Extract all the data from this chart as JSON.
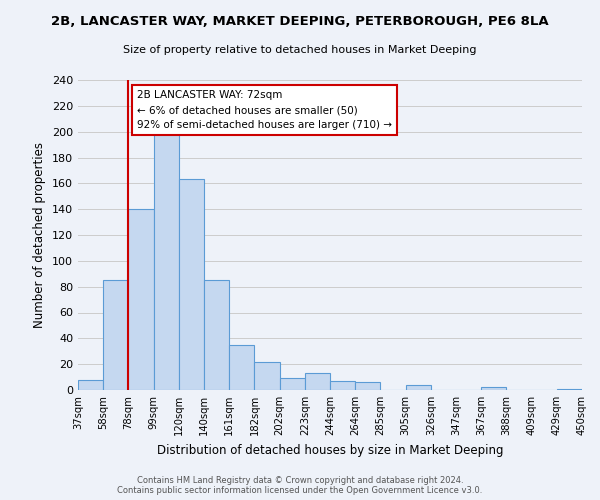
{
  "title": "2B, LANCASTER WAY, MARKET DEEPING, PETERBOROUGH, PE6 8LA",
  "subtitle": "Size of property relative to detached houses in Market Deeping",
  "xlabel": "Distribution of detached houses by size in Market Deeping",
  "ylabel": "Number of detached properties",
  "bar_values": [
    8,
    85,
    140,
    200,
    163,
    85,
    35,
    22,
    9,
    13,
    7,
    6,
    0,
    4,
    0,
    0,
    2,
    0,
    0,
    1
  ],
  "bin_labels": [
    "37sqm",
    "58sqm",
    "78sqm",
    "99sqm",
    "120sqm",
    "140sqm",
    "161sqm",
    "182sqm",
    "202sqm",
    "223sqm",
    "244sqm",
    "264sqm",
    "285sqm",
    "305sqm",
    "326sqm",
    "347sqm",
    "367sqm",
    "388sqm",
    "409sqm",
    "429sqm",
    "450sqm"
  ],
  "bar_color": "#c5d8f0",
  "bar_edge_color": "#5b9bd5",
  "vline_color": "#cc0000",
  "ylim": [
    0,
    240
  ],
  "yticks": [
    0,
    20,
    40,
    60,
    80,
    100,
    120,
    140,
    160,
    180,
    200,
    220,
    240
  ],
  "annotation_text": "2B LANCASTER WAY: 72sqm\n← 6% of detached houses are smaller (50)\n92% of semi-detached houses are larger (710) →",
  "annotation_box_color": "#ffffff",
  "annotation_box_edgecolor": "#cc0000",
  "footer_line1": "Contains HM Land Registry data © Crown copyright and database right 2024.",
  "footer_line2": "Contains public sector information licensed under the Open Government Licence v3.0.",
  "background_color": "#eef2f9",
  "grid_color": "#cccccc"
}
